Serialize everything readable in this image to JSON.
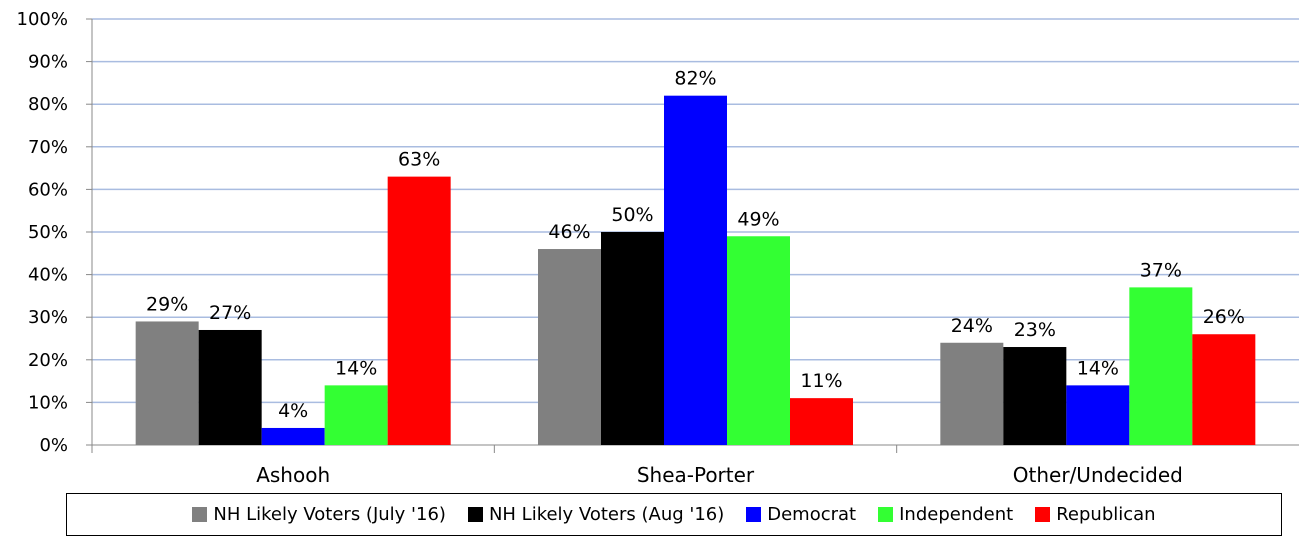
{
  "chart_data": {
    "type": "bar",
    "categories": [
      "Ashooh",
      "Shea-Porter",
      "Other/Undecided"
    ],
    "series": [
      {
        "name": "NH Likely Voters (July '16)",
        "color": "#808080",
        "values": [
          29,
          46,
          24
        ],
        "labels": [
          "29%",
          "46%",
          "24%"
        ]
      },
      {
        "name": "NH Likely Voters (Aug '16)",
        "color": "#000000",
        "values": [
          27,
          50,
          23
        ],
        "labels": [
          "27%",
          "50%",
          "23%"
        ]
      },
      {
        "name": "Democrat",
        "color": "#0000ff",
        "values": [
          4,
          82,
          14
        ],
        "labels": [
          "4%",
          "82%",
          "14%"
        ]
      },
      {
        "name": "Independent",
        "color": "#33ff33",
        "values": [
          14,
          49,
          37
        ],
        "labels": [
          "14%",
          "49%",
          "37%"
        ]
      },
      {
        "name": "Republican",
        "color": "#ff0000",
        "values": [
          63,
          11,
          26
        ],
        "labels": [
          "63%",
          "11%",
          "26%"
        ]
      }
    ],
    "y_ticks": [
      "0%",
      "10%",
      "20%",
      "30%",
      "40%",
      "50%",
      "60%",
      "70%",
      "80%",
      "90%",
      "100%"
    ],
    "ylim": [
      0,
      100
    ],
    "grid": true,
    "gridline_color": "#a9bce0",
    "legend_position": "bottom"
  }
}
